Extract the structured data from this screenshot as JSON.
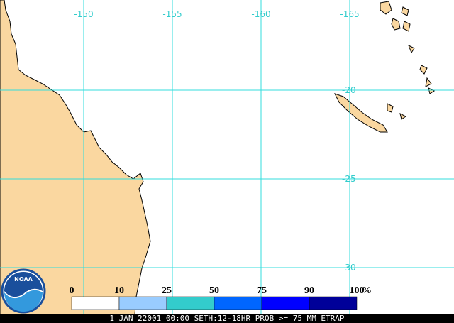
{
  "map": {
    "longitude_labels": [
      "-150",
      "-155",
      "-160",
      "-165"
    ],
    "latitude_labels": [
      "-20",
      "-25",
      "-30"
    ],
    "legend": {
      "labels": [
        "0",
        "10",
        "25",
        "50",
        "75",
        "90",
        "100"
      ],
      "unit": "%",
      "colors": [
        "#ffffff",
        "#99ccff",
        "#33cccc",
        "#0066ff",
        "#0000ff",
        "#000099"
      ]
    },
    "logo": "NOAA",
    "caption": "1 JAN 22001 00:00 SETH:12-18HR PROB >= 75 MM ETRAP"
  }
}
